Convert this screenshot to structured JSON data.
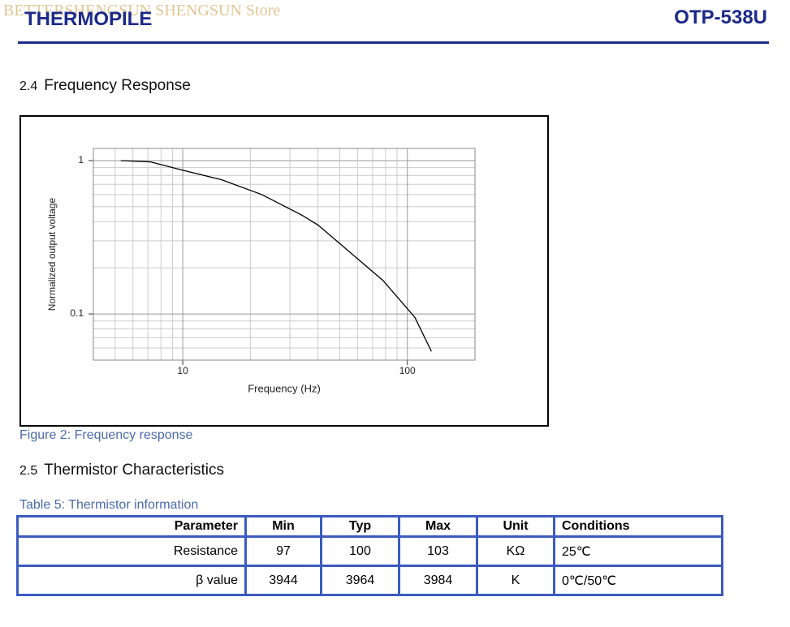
{
  "header": {
    "watermark": "BETTERSHENGSUN SHENGSUN Store",
    "title": "THERMOPILE",
    "part_number": "OTP-538U"
  },
  "section_1": {
    "number": "2.4",
    "title": "Frequency Response"
  },
  "chart_data": {
    "type": "line",
    "x_label": "Frequency (Hz)",
    "y_label": "Normalized output voltage",
    "xscale": "log",
    "yscale": "log",
    "xlim": [
      4,
      200
    ],
    "ylim": [
      0.05,
      1.2
    ],
    "xticks": [
      10,
      100
    ],
    "yticks": [
      0.1,
      1
    ],
    "xminor": [
      5,
      6,
      7,
      8,
      9,
      20,
      30,
      40,
      50,
      60,
      70,
      80,
      90,
      200
    ],
    "yminor": [
      0.06,
      0.07,
      0.08,
      0.09,
      0.2,
      0.3,
      0.4,
      0.5,
      0.6,
      0.7,
      0.8,
      0.9
    ],
    "grid": true,
    "color": "#000000",
    "x": [
      5.3,
      7.2,
      10,
      14.9,
      22.5,
      34,
      40,
      56,
      78,
      108,
      128
    ],
    "values": [
      1.0,
      0.98,
      0.865,
      0.75,
      0.6,
      0.44,
      0.38,
      0.25,
      0.165,
      0.095,
      0.057
    ]
  },
  "figure_caption": "Figure 2: Frequency response",
  "section_2": {
    "number": "2.5",
    "title": "Thermistor Characteristics"
  },
  "table_caption": "Table 5: Thermistor information",
  "table": {
    "header": [
      "Parameter",
      "Min",
      "Typ",
      "Max",
      "Unit",
      "Conditions"
    ],
    "rows": [
      [
        "Resistance",
        "97",
        "100",
        "103",
        "KΩ",
        "25℃"
      ],
      [
        "β value",
        "3944",
        "3964",
        "3984",
        "K",
        "0℃/50℃"
      ]
    ]
  }
}
